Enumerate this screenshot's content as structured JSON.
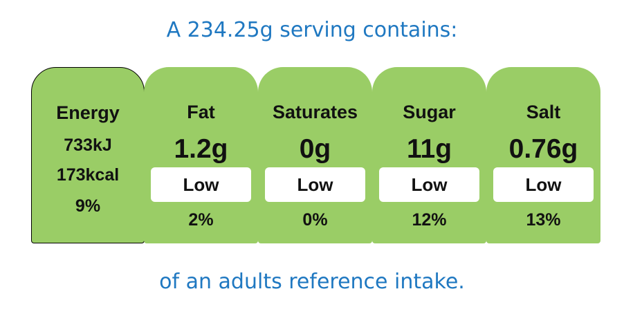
{
  "header": {
    "title": "A 234.25g serving contains:"
  },
  "energy": {
    "label": "Energy",
    "kj": "733kJ",
    "kcal": "173kcal",
    "percent": "9%"
  },
  "nutrients": [
    {
      "label": "Fat",
      "amount": "1.2g",
      "level": "Low",
      "percent": "2%"
    },
    {
      "label": "Saturates",
      "amount": "0g",
      "level": "Low",
      "percent": "0%"
    },
    {
      "label": "Sugar",
      "amount": "11g",
      "level": "Low",
      "percent": "12%"
    },
    {
      "label": "Salt",
      "amount": "0.76g",
      "level": "Low",
      "percent": "13%"
    }
  ],
  "footer": {
    "text": "of an adults reference intake."
  }
}
